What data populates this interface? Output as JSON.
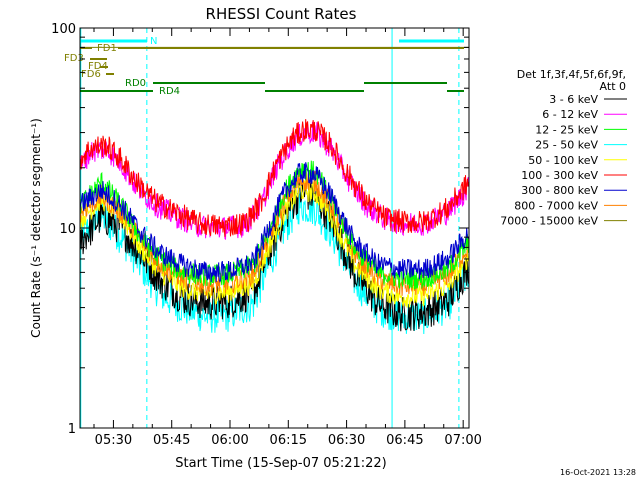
{
  "chart_data": {
    "type": "line",
    "title": "RHESSI Count Rates",
    "xlabel": "Start Time (15-Sep-07 05:21:22)",
    "ylabel": "Count Rate (s⁻¹ detector segment⁻¹)",
    "ylog": true,
    "ylim": [
      1,
      100
    ],
    "xlim_minutes": [
      321.4,
      421.5
    ],
    "x_tick_labels": [
      "05:30",
      "05:45",
      "06:00",
      "06:15",
      "06:30",
      "06:45",
      "07:00"
    ],
    "x_tick_minutes": [
      330,
      345,
      360,
      375,
      390,
      405,
      420
    ],
    "y_tick_labels": [
      "1",
      "10",
      "100"
    ],
    "y_tick_values": [
      1,
      10,
      100
    ],
    "legend_title": [
      "Det 1f,3f,4f,5f,6f,9f,",
      "Att 0"
    ],
    "series": [
      {
        "name": "3 - 6 keV",
        "color": "#000000",
        "x_minutes": [
          321.4,
          327,
          332,
          337,
          342,
          348,
          354,
          360,
          366,
          370,
          374,
          378,
          382,
          386,
          392,
          398,
          404,
          410,
          416,
          421.5
        ],
        "values": [
          8.5,
          11.5,
          10,
          7.5,
          5.5,
          4.5,
          4.2,
          4.3,
          4.8,
          7.5,
          11.5,
          15,
          14.5,
          11,
          6,
          4.2,
          3.7,
          3.8,
          4.3,
          6.5
        ]
      },
      {
        "name": "6 - 12 keV",
        "color": "#ff00ff",
        "x_minutes": [
          321.4,
          324,
          328,
          332,
          336,
          341,
          346,
          352,
          358,
          364,
          368,
          372,
          376,
          379,
          382,
          386,
          390,
          395,
          400,
          405,
          410,
          416,
          421.5
        ],
        "values": [
          20,
          24,
          25,
          21,
          16,
          13,
          11.5,
          10.2,
          10,
          10.3,
          13,
          20,
          27,
          30,
          30,
          25,
          18,
          13,
          11,
          10.5,
          10.5,
          12,
          16
        ]
      },
      {
        "name": "12 - 25 keV",
        "color": "#00ff00",
        "x_minutes": [
          321.4,
          327,
          332,
          337,
          342,
          348,
          354,
          360,
          366,
          370,
          374,
          378,
          382,
          386,
          392,
          398,
          404,
          410,
          416,
          421.5
        ],
        "values": [
          13,
          17,
          13,
          9,
          7,
          6,
          5.8,
          5.9,
          6.5,
          9.5,
          15,
          20,
          19,
          14,
          8,
          6,
          5.6,
          5.6,
          6.2,
          8.5
        ]
      },
      {
        "name": "25 - 50 keV",
        "color": "#00ffff",
        "x_minutes": [
          321.4,
          327,
          332,
          337,
          342,
          348,
          354,
          360,
          366,
          370,
          374,
          378,
          382,
          386,
          392,
          398,
          404,
          410,
          416,
          421.5
        ],
        "values": [
          9,
          11.5,
          9,
          6.5,
          4.7,
          4,
          3.6,
          3.7,
          4.2,
          6.5,
          10,
          13,
          12.5,
          9.5,
          5.5,
          4,
          3.6,
          3.6,
          4.1,
          6
        ]
      },
      {
        "name": "50 - 100 keV",
        "color": "#ffff00",
        "x_minutes": [
          321.4,
          327,
          332,
          337,
          342,
          348,
          354,
          360,
          366,
          370,
          374,
          378,
          382,
          386,
          392,
          398,
          404,
          410,
          416,
          421.5
        ],
        "values": [
          11,
          14,
          11.5,
          8,
          6,
          5,
          4.7,
          4.8,
          5.3,
          8,
          12,
          15.5,
          15,
          11.5,
          6.6,
          5,
          4.5,
          4.6,
          5.1,
          7.3
        ]
      },
      {
        "name": "100 - 300 keV",
        "color": "#ff0000",
        "x_minutes": [
          321.4,
          324,
          328,
          332,
          336,
          341,
          346,
          352,
          358,
          364,
          368,
          372,
          376,
          379,
          382,
          386,
          390,
          395,
          400,
          405,
          410,
          416,
          421.5
        ],
        "values": [
          22,
          25,
          26,
          22,
          17,
          13.5,
          12,
          10.5,
          10.2,
          10.6,
          13.5,
          21,
          28,
          31,
          31,
          26,
          19,
          13.5,
          11.2,
          10.7,
          10.7,
          12.5,
          17
        ]
      },
      {
        "name": "300 - 800 keV",
        "color": "#0000cd",
        "x_minutes": [
          321.4,
          327,
          332,
          337,
          342,
          348,
          354,
          360,
          366,
          370,
          374,
          378,
          382,
          386,
          392,
          398,
          404,
          410,
          416,
          421.5
        ],
        "values": [
          13,
          15.5,
          13,
          9.5,
          7.5,
          6.5,
          6,
          6.1,
          6.7,
          10,
          15,
          19,
          18.5,
          14.5,
          8.5,
          6.6,
          6.2,
          6.2,
          7,
          9.5
        ]
      },
      {
        "name": "800 - 7000 keV",
        "color": "#ff8000",
        "x_minutes": [
          321.4,
          327,
          332,
          337,
          342,
          348,
          354,
          360,
          366,
          370,
          374,
          378,
          382,
          386,
          392,
          398,
          404,
          410,
          416,
          421.5
        ],
        "values": [
          12,
          14.5,
          12,
          8.8,
          6.6,
          5.6,
          5.2,
          5.3,
          5.9,
          9,
          13.5,
          17.5,
          17,
          13,
          7.5,
          5.6,
          5.1,
          5.2,
          5.8,
          8.2
        ]
      },
      {
        "name": "7000 - 15000 keV",
        "color": "#808000",
        "x_minutes": [
          321.4,
          421.5
        ],
        "values": [
          80,
          80
        ]
      }
    ],
    "attenuator_labels": [
      {
        "text": "FD1",
        "color": "#808000"
      },
      {
        "text": "FD3",
        "color": "#808000"
      },
      {
        "text": "FD4",
        "color": "#808000"
      },
      {
        "text": "FD6",
        "color": "#808000"
      },
      {
        "text": "N",
        "color": "#00ffff"
      },
      {
        "text": "RD0",
        "color": "#008000"
      },
      {
        "text": "RD4",
        "color": "#008000"
      }
    ],
    "vertical_markers_minutes": {
      "solid": [
        321.6,
        401.7
      ],
      "dashed": [
        338.6,
        418.9
      ]
    },
    "grid": false,
    "legend_position": "right"
  },
  "footer_date": "16-Oct-2021 13:28"
}
